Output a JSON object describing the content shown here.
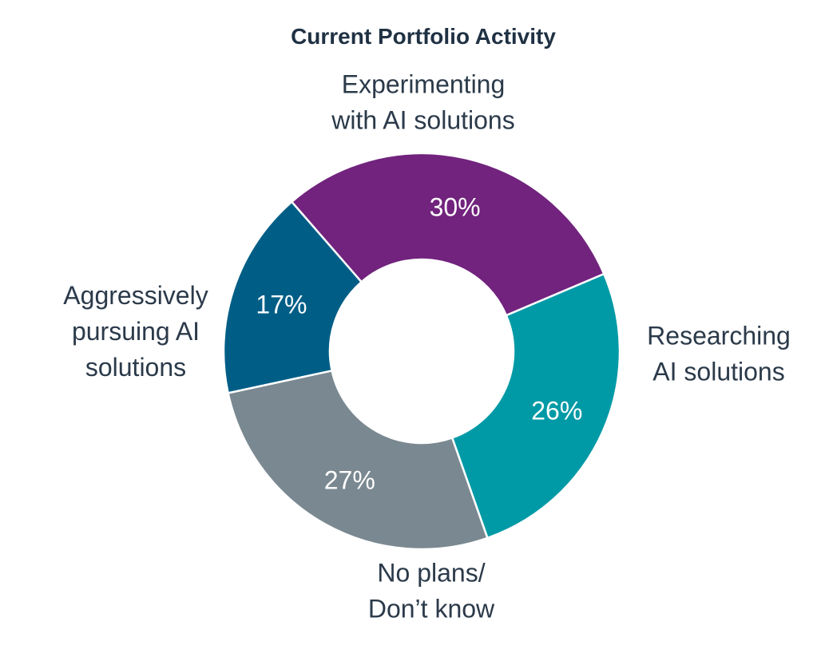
{
  "chart_data": {
    "type": "pie",
    "variant": "donut",
    "title": "Current Portfolio Activity",
    "start_angle_deg": 41,
    "direction": "clockwise",
    "slices": [
      {
        "label_lines": [
          "Experimenting",
          "with AI solutions"
        ],
        "value": 30,
        "value_label": "30%",
        "color": "#71237d"
      },
      {
        "label_lines": [
          "Researching",
          "AI solutions"
        ],
        "value": 26,
        "value_label": "26%",
        "color": "#009aa6"
      },
      {
        "label_lines": [
          "No plans/",
          "Don’t know"
        ],
        "value": 27,
        "value_label": "27%",
        "color": "#7a8891"
      },
      {
        "label_lines": [
          "Aggressively",
          "pursuing AI",
          "solutions"
        ],
        "value": 17,
        "value_label": "17%",
        "color": "#005e86"
      }
    ]
  }
}
